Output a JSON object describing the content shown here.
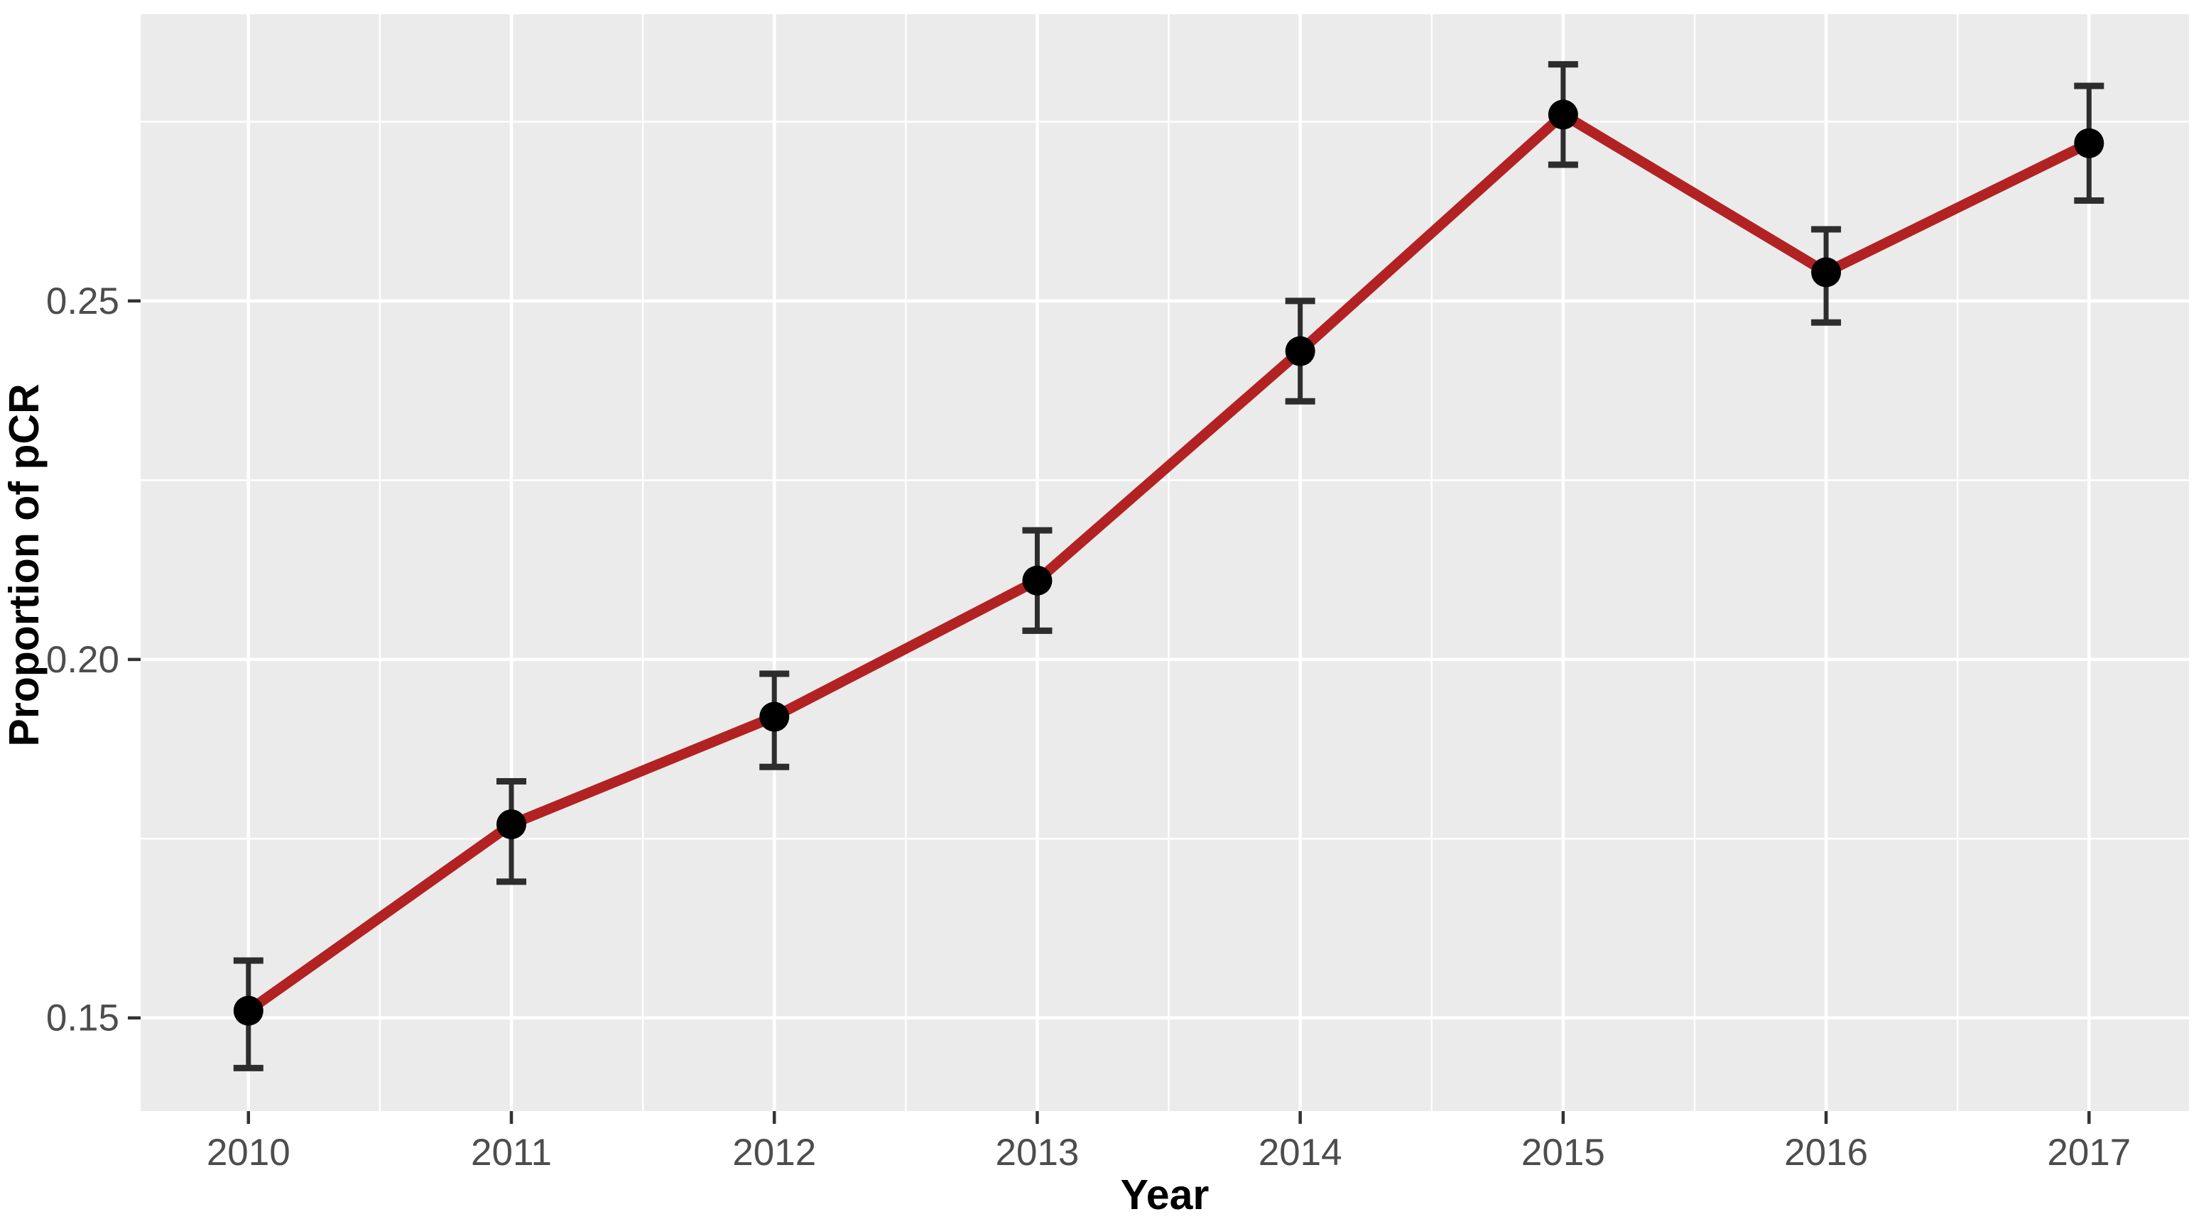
{
  "chart_data": {
    "type": "line",
    "title": "",
    "xlabel": "Year",
    "ylabel": "Proportion of pCR",
    "categories": [
      "2010",
      "2011",
      "2012",
      "2013",
      "2014",
      "2015",
      "2016",
      "2017"
    ],
    "series": [
      {
        "name": "Proportion of pCR",
        "values": [
          0.151,
          0.177,
          0.192,
          0.211,
          0.243,
          0.276,
          0.254,
          0.272
        ],
        "ci_low": [
          0.143,
          0.169,
          0.185,
          0.204,
          0.236,
          0.269,
          0.247,
          0.264
        ],
        "ci_high": [
          0.158,
          0.183,
          0.198,
          0.218,
          0.25,
          0.283,
          0.26,
          0.28
        ]
      }
    ],
    "error_bars": true,
    "marker": "filled-circle",
    "yticks": [
      0.15,
      0.2,
      0.25
    ],
    "ytick_labels": [
      "0.15",
      "0.20",
      "0.25"
    ],
    "xlim": [
      2009.59,
      2017.38
    ],
    "ylim": [
      0.137,
      0.29
    ],
    "grid": "major-and-minor-white",
    "legend": false,
    "style": "ggplot2-grey-theme",
    "colors": {
      "line": "#b22222",
      "point": "#000000",
      "error_bar": "#2d2d2d",
      "panel_background": "#ebebeb",
      "gridline": "#ffffff",
      "tick_mark": "#333333",
      "axis_text": "#4d4d4d",
      "axis_title": "#000000",
      "background": "#ffffff"
    }
  }
}
